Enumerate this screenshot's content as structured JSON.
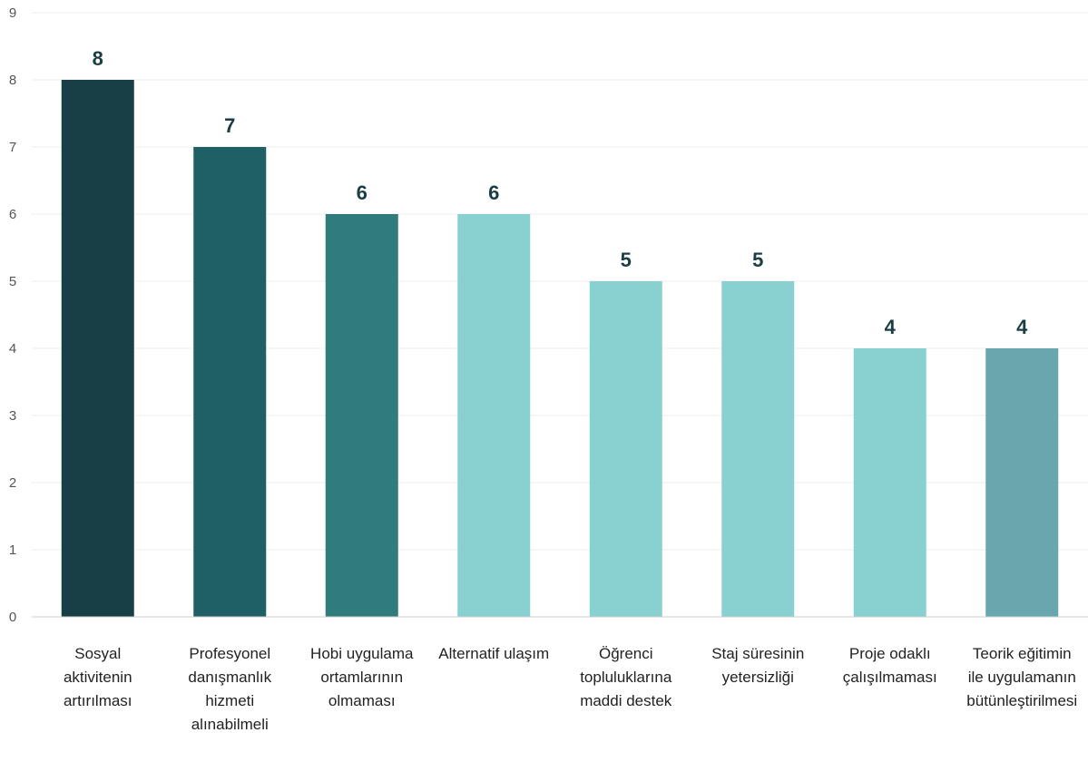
{
  "chart_data": {
    "type": "bar",
    "ylim": [
      0,
      9
    ],
    "yticks": [
      0,
      1,
      2,
      3,
      4,
      5,
      6,
      7,
      8,
      9
    ],
    "grid": true,
    "categories": [
      [
        "Sosyal",
        "aktivitenin",
        "artırılması"
      ],
      [
        "Profesyonel",
        "danışmanlık",
        "hizmeti",
        "alınabilmeli"
      ],
      [
        "Hobi uygulama",
        "ortamlarının",
        "olmaması"
      ],
      [
        "Alternatif ulaşım"
      ],
      [
        "Öğrenci",
        "topluluklarına",
        "maddi destek"
      ],
      [
        "Staj süresinin",
        "yetersizliği"
      ],
      [
        "Proje odaklı",
        "çalışılmaması"
      ],
      [
        "Teorik eğitimin",
        "ile uygulamanın",
        "bütünleştirilmesi"
      ]
    ],
    "values": [
      8,
      7,
      6,
      6,
      5,
      5,
      4,
      4
    ],
    "colors": [
      "#183f46",
      "#1f5f66",
      "#307b7b",
      "#88d1d0",
      "#88d1d0",
      "#88d1d0",
      "#88d1d0",
      "#67a7ad"
    ]
  }
}
